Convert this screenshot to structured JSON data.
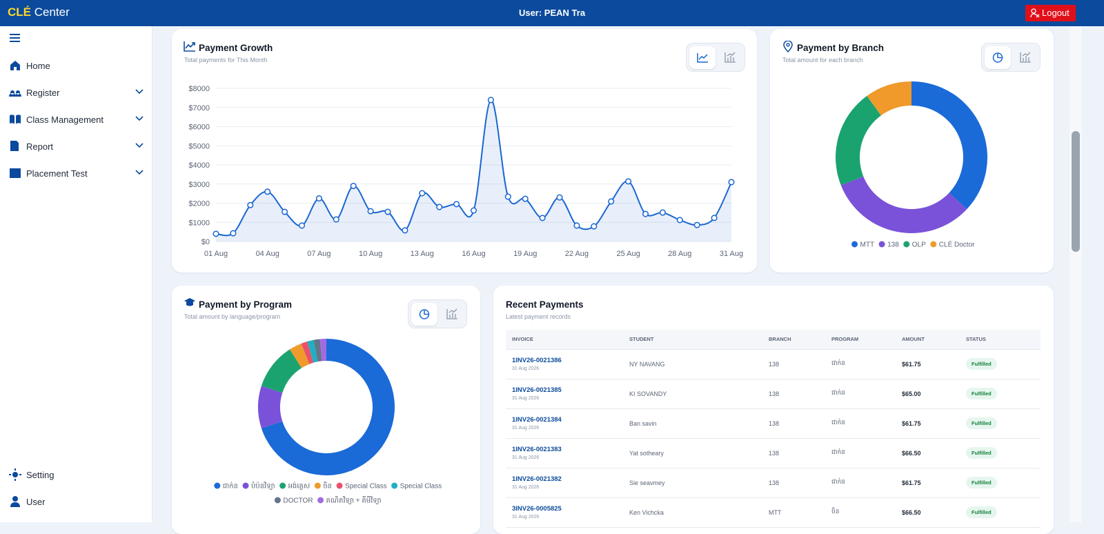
{
  "header": {
    "brand_mark": "CLÉ",
    "brand": "Center",
    "user": "User: PEAN Tra",
    "logout": "Logout"
  },
  "sidebar": {
    "items": [
      "Home",
      "Register",
      "Class Management",
      "Report",
      "Placement Test"
    ],
    "bottom": [
      "Setting",
      "User"
    ]
  },
  "chart_data": [
    {
      "type": "line",
      "title": "Payment Growth",
      "subtitle": "Total payments for This Month",
      "categories": [
        "01 Aug",
        null,
        null,
        "04 Aug",
        null,
        null,
        "07 Aug",
        null,
        null,
        "10 Aug",
        null,
        null,
        "13 Aug",
        null,
        null,
        "16 Aug",
        null,
        null,
        "19 Aug",
        null,
        null,
        "22 Aug",
        null,
        null,
        "25 Aug",
        null,
        null,
        "28 Aug",
        null,
        null,
        "31 Aug"
      ],
      "values": [
        400,
        430,
        1900,
        2600,
        1550,
        830,
        2250,
        1150,
        2900,
        1580,
        1550,
        580,
        2520,
        1800,
        1950,
        1620,
        7390,
        2340,
        2230,
        1230,
        2300,
        830,
        790,
        2090,
        3140,
        1440,
        1510,
        1120,
        860,
        1230,
        3100
      ],
      "color": "#1a66d2",
      "ylim": [
        0,
        8000
      ],
      "yticks": [
        {
          "value": 0,
          "label": "$0"
        },
        {
          "value": 1000,
          "label": "$1000"
        },
        {
          "value": 2000,
          "label": "$2000"
        },
        {
          "value": 3000,
          "label": "$3000"
        },
        {
          "value": 4000,
          "label": "$4000"
        },
        {
          "value": 5000,
          "label": "$5000"
        },
        {
          "value": 6000,
          "label": "$6000"
        },
        {
          "value": 7000,
          "label": "$7000"
        },
        {
          "value": 8000,
          "label": "$8000"
        }
      ],
      "grid": true
    },
    {
      "type": "donut",
      "title": "Payment by Branch",
      "subtitle": "Total amount for each branch",
      "categories": [
        "MTT",
        "138",
        "OLP",
        "CLÉ Doctor"
      ],
      "values": [
        37,
        32,
        21,
        10
      ],
      "colors": [
        "#1a6ad8",
        "#7a52d9",
        "#1aa36f",
        "#ef9a2a"
      ],
      "legend": "bottom"
    },
    {
      "type": "donut",
      "title": "Payment by Program",
      "subtitle": "Total amount by language/program",
      "categories": [
        "ជាក់ន",
        "បំប៉នវិទ្យា",
        "អង់គ្លេស",
        "ចិន",
        "Special Class",
        "Special Class",
        "DOCTOR",
        "គណិតវិទ្យា + គីមីវិទ្យា"
      ],
      "values": [
        70,
        10,
        11,
        3,
        1.5,
        1.5,
        1.5,
        1.5
      ],
      "colors": [
        "#1a6ad8",
        "#7a52d9",
        "#1aa36f",
        "#ef9a2a",
        "#e9526a",
        "#1fb0c2",
        "#64748b",
        "#a36be0"
      ],
      "legend": "bottom"
    }
  ],
  "recent_payments": {
    "title": "Recent Payments",
    "subtitle": "Latest payment records",
    "columns": [
      "INVOICE",
      "STUDENT",
      "BRANCH",
      "PROGRAM",
      "AMOUNT",
      "STATUS"
    ],
    "rows": [
      [
        "1INV26-0021386",
        "31 Aug 2026",
        "NY NAVANG",
        "138",
        "ជាក់ន",
        "$61.75",
        "Fulfilled"
      ],
      [
        "1INV26-0021385",
        "31 Aug 2026",
        "KI SOVANDY",
        "138",
        "ជាក់ន",
        "$65.00",
        "Fulfilled"
      ],
      [
        "1INV26-0021384",
        "31 Aug 2026",
        "Ban savin",
        "138",
        "ជាក់ន",
        "$61.75",
        "Fulfilled"
      ],
      [
        "1INV26-0021383",
        "31 Aug 2026",
        "Yat sotheary",
        "138",
        "ជាក់ន",
        "$66.50",
        "Fulfilled"
      ],
      [
        "1INV26-0021382",
        "31 Aug 2026",
        "Sie seavmey",
        "138",
        "ជាក់ន",
        "$61.75",
        "Fulfilled"
      ],
      [
        "3INV26-0005825",
        "31 Aug 2026",
        "Ken Vichcka",
        "MTT",
        "ចិន",
        "$66.50",
        "Fulfilled"
      ]
    ]
  }
}
